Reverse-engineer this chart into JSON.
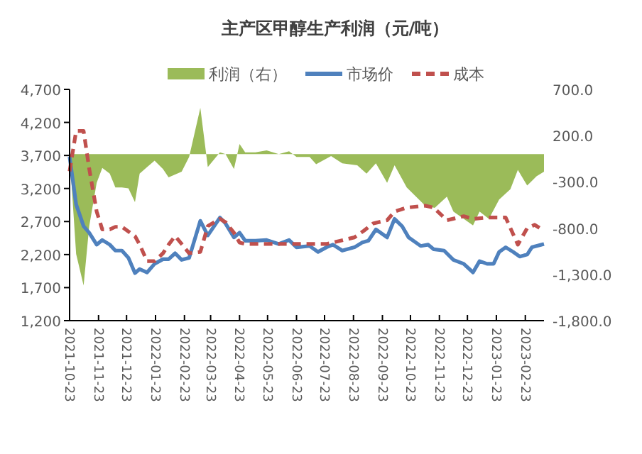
{
  "chart_data": {
    "type": "line",
    "title": "主产区甲醇生产利润（元/吨）",
    "legend": "top",
    "grid": false,
    "xlim": [
      "2021-10-23",
      "2023-03-15"
    ],
    "xticks": [
      {
        "value": "2021-10-23",
        "label": "2021-10-23"
      },
      {
        "value": "2021-11-23",
        "label": "2021-11-23"
      },
      {
        "value": "2021-12-23",
        "label": "2021-12-23"
      },
      {
        "value": "2022-01-23",
        "label": "2022-01-23"
      },
      {
        "value": "2022-02-23",
        "label": "2022-02-23"
      },
      {
        "value": "2022-03-23",
        "label": "2022-03-23"
      },
      {
        "value": "2022-04-23",
        "label": "2022-04-23"
      },
      {
        "value": "2022-05-23",
        "label": "2022-05-23"
      },
      {
        "value": "2022-06-23",
        "label": "2022-06-23"
      },
      {
        "value": "2022-07-23",
        "label": "2022-07-23"
      },
      {
        "value": "2022-08-23",
        "label": "2022-08-23"
      },
      {
        "value": "2022-09-23",
        "label": "2022-09-23"
      },
      {
        "value": "2022-10-23",
        "label": "2022-10-23"
      },
      {
        "value": "2022-11-23",
        "label": "2022-11-23"
      },
      {
        "value": "2022-12-23",
        "label": "2022-12-23"
      },
      {
        "value": "2023-01-23",
        "label": "2023-01-23"
      },
      {
        "value": "2023-02-23",
        "label": "2023-02-23"
      }
    ],
    "ylim": [
      1200,
      4700
    ],
    "yticks": [
      {
        "value": 1200,
        "label": "1,200"
      },
      {
        "value": 1700,
        "label": "1,700"
      },
      {
        "value": 2200,
        "label": "2,200"
      },
      {
        "value": 2700,
        "label": "2,700"
      },
      {
        "value": 3200,
        "label": "3,200"
      },
      {
        "value": 3700,
        "label": "3,700"
      },
      {
        "value": 4200,
        "label": "4,200"
      },
      {
        "value": 4700,
        "label": "4,700"
      }
    ],
    "y2lim": [
      -1800,
      700
    ],
    "y2ticks": [
      {
        "value": -1800,
        "label": "-1,800.0"
      },
      {
        "value": -1300,
        "label": "-1,300.0"
      },
      {
        "value": -800,
        "label": "-800.0"
      },
      {
        "value": -300,
        "label": "-300.0"
      },
      {
        "value": 200,
        "label": "200.0"
      },
      {
        "value": 700,
        "label": "700.0"
      }
    ],
    "series": [
      {
        "name": "利润（右）",
        "type": "area",
        "axis": "y2",
        "color": "#9bbb59",
        "x": [
          "2021-10-23",
          "2021-10-30",
          "2021-11-07",
          "2021-11-13",
          "2021-11-21",
          "2021-11-27",
          "2021-12-05",
          "2021-12-11",
          "2021-12-18",
          "2021-12-25",
          "2022-01-01",
          "2022-01-06",
          "2022-01-14",
          "2022-01-22",
          "2022-01-31",
          "2022-02-06",
          "2022-02-13",
          "2022-02-20",
          "2022-02-28",
          "2022-03-12",
          "2022-03-20",
          "2022-04-02",
          "2022-04-08",
          "2022-04-17",
          "2022-04-23",
          "2022-04-29",
          "2022-05-10",
          "2022-05-22",
          "2022-06-04",
          "2022-06-15",
          "2022-06-23",
          "2022-07-07",
          "2022-07-14",
          "2022-07-30",
          "2022-08-11",
          "2022-08-27",
          "2022-09-06",
          "2022-09-16",
          "2022-09-28",
          "2022-10-06",
          "2022-10-19",
          "2022-11-08",
          "2022-11-18",
          "2022-12-01",
          "2022-12-08",
          "2022-12-29",
          "2023-01-05",
          "2023-01-15",
          "2023-01-26",
          "2023-02-07",
          "2023-02-15",
          "2023-02-25",
          "2023-03-07",
          "2023-03-15"
        ],
        "values": [
          0,
          -1080,
          -1420,
          -780,
          -310,
          -150,
          -210,
          -360,
          -360,
          -370,
          -520,
          -210,
          -140,
          -70,
          -160,
          -250,
          -220,
          -190,
          -30,
          500,
          -140,
          20,
          0,
          -160,
          110,
          20,
          20,
          40,
          0,
          30,
          -30,
          -30,
          -110,
          -20,
          -100,
          -120,
          -210,
          -100,
          -310,
          -120,
          -360,
          -560,
          -580,
          -460,
          -620,
          -770,
          -620,
          -700,
          -490,
          -380,
          -170,
          -340,
          -240,
          -190
        ]
      },
      {
        "name": "市场价",
        "color": "#4f81bd",
        "line_style": "solid",
        "x": [
          "2021-10-23",
          "2021-10-30",
          "2021-11-07",
          "2021-11-13",
          "2021-11-21",
          "2021-11-27",
          "2021-12-05",
          "2021-12-11",
          "2021-12-18",
          "2021-12-25",
          "2022-01-01",
          "2022-01-06",
          "2022-01-14",
          "2022-01-22",
          "2022-01-31",
          "2022-02-06",
          "2022-02-13",
          "2022-02-20",
          "2022-02-28",
          "2022-03-12",
          "2022-03-20",
          "2022-04-02",
          "2022-04-08",
          "2022-04-17",
          "2022-04-23",
          "2022-04-29",
          "2022-05-10",
          "2022-05-22",
          "2022-06-04",
          "2022-06-15",
          "2022-06-23",
          "2022-07-07",
          "2022-07-16",
          "2022-07-25",
          "2022-08-01",
          "2022-08-11",
          "2022-08-24",
          "2022-09-01",
          "2022-09-08",
          "2022-09-16",
          "2022-09-28",
          "2022-10-06",
          "2022-10-14",
          "2022-10-21",
          "2022-11-03",
          "2022-11-11",
          "2022-11-17",
          "2022-11-28",
          "2022-12-08",
          "2022-12-19",
          "2022-12-29",
          "2023-01-05",
          "2023-01-13",
          "2023-01-20",
          "2023-01-26",
          "2023-02-02",
          "2023-02-10",
          "2023-02-17",
          "2023-02-25",
          "2023-03-02",
          "2023-03-15"
        ],
        "values": [
          3680,
          2960,
          2630,
          2530,
          2350,
          2420,
          2350,
          2260,
          2260,
          2150,
          1920,
          1980,
          1930,
          2060,
          2130,
          2130,
          2220,
          2120,
          2150,
          2710,
          2490,
          2760,
          2670,
          2460,
          2530,
          2410,
          2410,
          2420,
          2360,
          2420,
          2310,
          2330,
          2240,
          2310,
          2350,
          2260,
          2310,
          2380,
          2410,
          2580,
          2460,
          2740,
          2630,
          2460,
          2330,
          2350,
          2280,
          2260,
          2120,
          2060,
          1930,
          2100,
          2060,
          2060,
          2240,
          2310,
          2240,
          2170,
          2200,
          2310,
          2360
        ]
      },
      {
        "name": "成本",
        "color": "#c0504d",
        "line_style": "dashed",
        "x": [
          "2021-10-23",
          "2021-10-30",
          "2021-11-07",
          "2021-11-13",
          "2021-11-21",
          "2021-11-27",
          "2021-12-05",
          "2021-12-11",
          "2021-12-18",
          "2021-12-25",
          "2022-01-01",
          "2022-01-06",
          "2022-01-14",
          "2022-01-22",
          "2022-01-31",
          "2022-02-06",
          "2022-02-13",
          "2022-02-20",
          "2022-02-28",
          "2022-03-12",
          "2022-03-20",
          "2022-04-02",
          "2022-04-08",
          "2022-04-17",
          "2022-04-23",
          "2022-04-29",
          "2022-07-25",
          "2022-08-24",
          "2022-09-03",
          "2022-09-13",
          "2022-09-28",
          "2022-10-06",
          "2022-10-19",
          "2022-11-08",
          "2022-11-17",
          "2022-12-01",
          "2022-12-19",
          "2022-12-29",
          "2023-01-13",
          "2023-02-02",
          "2023-02-15",
          "2023-02-25",
          "2023-03-05",
          "2023-03-15"
        ],
        "values": [
          3460,
          4070,
          4070,
          3500,
          2850,
          2580,
          2580,
          2620,
          2620,
          2550,
          2480,
          2350,
          2100,
          2100,
          2220,
          2350,
          2480,
          2360,
          2220,
          2240,
          2630,
          2740,
          2690,
          2530,
          2380,
          2360,
          2360,
          2460,
          2560,
          2670,
          2720,
          2850,
          2910,
          2940,
          2910,
          2720,
          2780,
          2740,
          2760,
          2760,
          2350,
          2600,
          2650,
          2560
        ]
      }
    ]
  }
}
